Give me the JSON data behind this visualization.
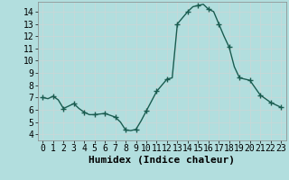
{
  "xlabel": "Humidex (Indice chaleur)",
  "background_color": "#b2dede",
  "line_color": "#1a5c50",
  "marker_color": "#1a5c50",
  "grid_color": "#c8d8d8",
  "xlim": [
    -0.5,
    23.5
  ],
  "ylim": [
    3.5,
    14.8
  ],
  "yticks": [
    4,
    5,
    6,
    7,
    8,
    9,
    10,
    11,
    12,
    13,
    14
  ],
  "xticks": [
    0,
    1,
    2,
    3,
    4,
    5,
    6,
    7,
    8,
    9,
    10,
    11,
    12,
    13,
    14,
    15,
    16,
    17,
    18,
    19,
    20,
    21,
    22,
    23
  ],
  "x": [
    0,
    0.5,
    1,
    1.5,
    2,
    2.5,
    3,
    3.5,
    4,
    4.5,
    5,
    5.5,
    6,
    6.5,
    7,
    7.5,
    8,
    8.5,
    9,
    9.5,
    10,
    10.5,
    11,
    11.5,
    12,
    12.5,
    13,
    13.5,
    14,
    14.5,
    15,
    15.5,
    16,
    16.5,
    17,
    17.5,
    18,
    18.5,
    19,
    19.5,
    20,
    20.5,
    21,
    21.5,
    22,
    22.5,
    23
  ],
  "y": [
    7.0,
    6.9,
    7.1,
    6.8,
    6.1,
    6.3,
    6.5,
    6.1,
    5.8,
    5.6,
    5.6,
    5.65,
    5.7,
    5.55,
    5.4,
    5.0,
    4.35,
    4.3,
    4.4,
    5.1,
    5.9,
    6.7,
    7.5,
    8.0,
    8.5,
    8.6,
    13.0,
    13.5,
    14.0,
    14.4,
    14.5,
    14.6,
    14.2,
    14.0,
    13.0,
    12.0,
    11.1,
    9.5,
    8.6,
    8.5,
    8.4,
    7.8,
    7.2,
    6.9,
    6.6,
    6.4,
    6.2
  ],
  "marker_x": [
    0,
    1,
    2,
    3,
    4,
    5,
    6,
    7,
    8,
    9,
    10,
    11,
    12,
    13,
    14,
    15,
    16,
    17,
    18,
    19,
    20,
    21,
    22,
    23
  ],
  "marker_y": [
    7.0,
    7.1,
    6.1,
    6.5,
    5.8,
    5.6,
    5.7,
    5.4,
    4.35,
    4.4,
    5.9,
    7.5,
    8.5,
    13.0,
    14.0,
    14.5,
    14.2,
    13.0,
    11.1,
    8.6,
    8.4,
    7.2,
    6.6,
    6.2
  ],
  "fontsize_xlabel": 8,
  "tick_fontsize": 7,
  "marker_size": 4,
  "linewidth": 1.0
}
